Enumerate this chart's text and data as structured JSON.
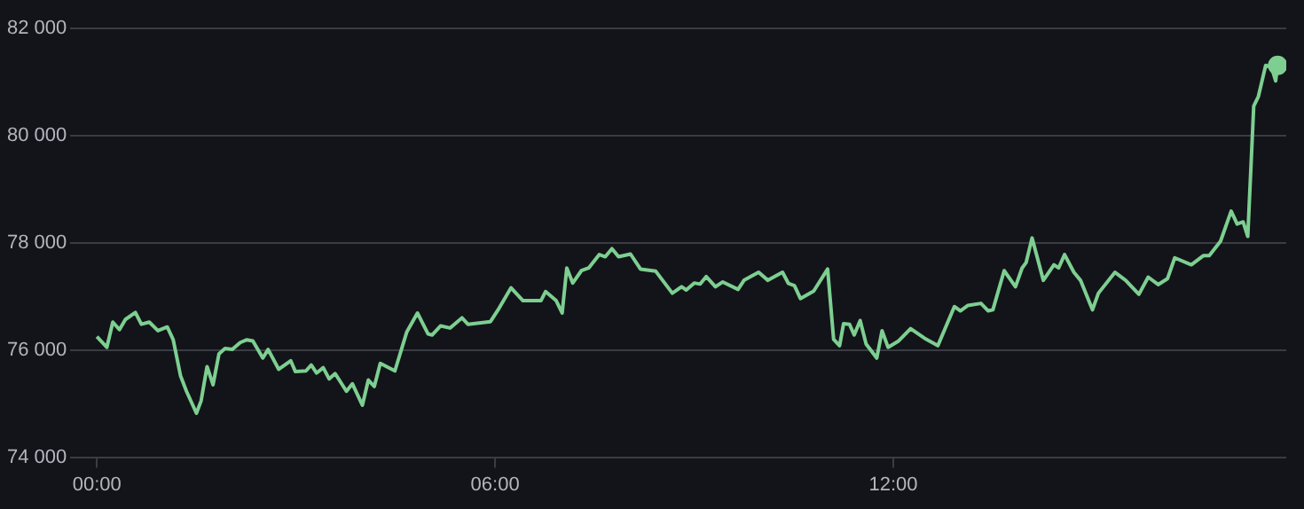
{
  "chart_data": {
    "type": "line",
    "x": [
      0,
      0.15,
      0.24,
      0.34,
      0.43,
      0.58,
      0.67,
      0.79,
      0.92,
      1.06,
      1.15,
      1.26,
      1.35,
      1.5,
      1.57,
      1.66,
      1.75,
      1.84,
      1.93,
      2.04,
      2.16,
      2.26,
      2.35,
      2.5,
      2.58,
      2.74,
      2.92,
      2.99,
      3.15,
      3.23,
      3.31,
      3.41,
      3.5,
      3.59,
      3.76,
      3.85,
      4,
      4.09,
      4.18,
      4.27,
      4.49,
      4.67,
      4.83,
      4.99,
      5.05,
      5.18,
      5.32,
      5.5,
      5.59,
      5.93,
      6.06,
      6.24,
      6.42,
      6.69,
      6.76,
      6.92,
      7.01,
      7.08,
      7.17,
      7.3,
      7.41,
      7.57,
      7.66,
      7.76,
      7.86,
      8.04,
      8.19,
      8.42,
      8.67,
      8.81,
      8.88,
      9,
      9.09,
      9.18,
      9.32,
      9.43,
      9.66,
      9.75,
      9.97,
      10.11,
      10.33,
      10.42,
      10.51,
      10.6,
      10.8,
      11.01,
      11.1,
      11.19,
      11.25,
      11.34,
      11.41,
      11.5,
      11.59,
      11.75,
      11.83,
      11.92,
      12.08,
      12.26,
      12.47,
      12.67,
      12.92,
      13.01,
      13.12,
      13.32,
      13.43,
      13.5,
      13.67,
      13.84,
      13.94,
      14,
      14.09,
      14.26,
      14.42,
      14.49,
      14.58,
      14.72,
      14.82,
      15,
      15.09,
      15.34,
      15.5,
      15.7,
      15.84,
      15.99,
      16.13,
      16.24,
      16.49,
      16.67,
      16.76,
      16.93,
      17.09,
      17.18,
      17.27,
      17.34,
      17.43,
      17.5,
      17.61,
      17.7,
      17.76,
      17.79
    ],
    "series": [
      {
        "color": "#7dcf91",
        "values": [
          76250,
          76050,
          76520,
          76380,
          76570,
          76700,
          76480,
          76520,
          76360,
          76430,
          76190,
          75520,
          75230,
          74820,
          75050,
          75690,
          75350,
          75930,
          76030,
          76010,
          76140,
          76190,
          76170,
          75850,
          76010,
          75640,
          75800,
          75600,
          75610,
          75720,
          75570,
          75670,
          75460,
          75560,
          75230,
          75370,
          74970,
          75440,
          75320,
          75750,
          75610,
          76340,
          76690,
          76300,
          76280,
          76450,
          76410,
          76600,
          76480,
          76530,
          76780,
          77160,
          76920,
          76920,
          77090,
          76920,
          76690,
          77530,
          77250,
          77480,
          77530,
          77780,
          77740,
          77890,
          77740,
          77790,
          77510,
          77470,
          77060,
          77180,
          77120,
          77250,
          77230,
          77370,
          77180,
          77270,
          77130,
          77300,
          77450,
          77300,
          77450,
          77240,
          77200,
          76960,
          77100,
          77510,
          76200,
          76080,
          76490,
          76480,
          76280,
          76550,
          76110,
          75850,
          76360,
          76050,
          76170,
          76400,
          76220,
          76080,
          76810,
          76730,
          76830,
          76870,
          76730,
          76750,
          77480,
          77180,
          77530,
          77630,
          78090,
          77300,
          77590,
          77530,
          77780,
          77450,
          77300,
          76750,
          77060,
          77450,
          77300,
          77040,
          77360,
          77220,
          77330,
          77720,
          77590,
          77760,
          77760,
          78030,
          78590,
          78350,
          78390,
          78120,
          80550,
          80730,
          81310,
          81270,
          81020,
          81310
        ]
      }
    ],
    "xlim": [
      -0.4,
      17.92
    ],
    "xticks": [
      {
        "value": 0,
        "label": "00:00"
      },
      {
        "value": 6,
        "label": "06:00"
      },
      {
        "value": 12,
        "label": "12:00"
      }
    ],
    "ylim": [
      74000,
      82000
    ],
    "yticks": [
      {
        "value": 74000,
        "label": "74 000"
      },
      {
        "value": 76000,
        "label": "76 000"
      },
      {
        "value": 78000,
        "label": "78 000"
      },
      {
        "value": 80000,
        "label": "80 000"
      },
      {
        "value": 82000,
        "label": "82 000"
      }
    ],
    "grid": "y"
  }
}
